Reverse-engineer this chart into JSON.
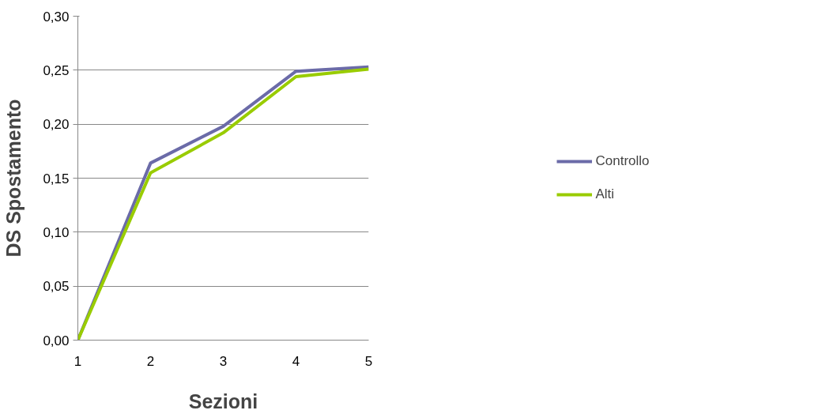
{
  "chart_data": {
    "type": "line",
    "xlabel": "Sezioni",
    "ylabel": "DS Spostamento",
    "x": [
      1,
      2,
      3,
      4,
      5
    ],
    "series": [
      {
        "name": "Controllo",
        "color": "#6b6ba8",
        "values": [
          0.0,
          0.164,
          0.198,
          0.249,
          0.253
        ]
      },
      {
        "name": "Alti",
        "color": "#99cc00",
        "values": [
          0.0,
          0.155,
          0.192,
          0.244,
          0.251
        ]
      }
    ],
    "xlim": [
      1,
      5
    ],
    "xticks": [
      1,
      2,
      3,
      4,
      5
    ],
    "ylim": [
      0,
      0.3
    ],
    "yticks": [
      {
        "value": 0,
        "label": "0,00"
      },
      {
        "value": 0.05,
        "label": "0,05"
      },
      {
        "value": 0.1,
        "label": "0,10"
      },
      {
        "value": 0.15,
        "label": "0,15"
      },
      {
        "value": 0.2,
        "label": "0,20"
      },
      {
        "value": 0.25,
        "label": "0,25"
      },
      {
        "value": 0.3,
        "label": "0,30"
      }
    ],
    "grid": "y",
    "legend": "right",
    "marker": "none",
    "line_style": "solid"
  }
}
